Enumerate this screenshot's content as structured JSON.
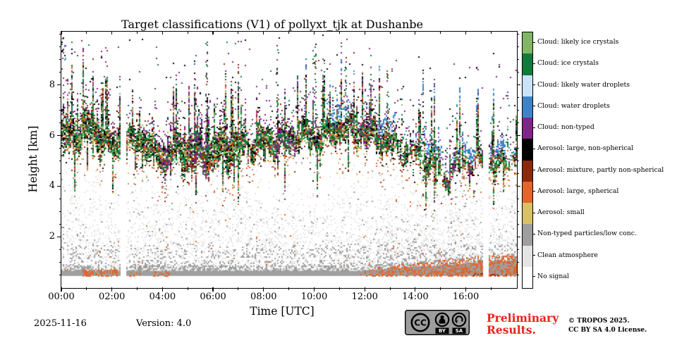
{
  "colors": {
    "preliminary_red": "#e8241c",
    "badge_gray": "#9d9d9d",
    "axis_black": "#000000"
  },
  "footer": {
    "date": "2025-11-16",
    "version": "Version: 4.0",
    "preliminary_line1": "Preliminary",
    "preliminary_line2": "Results.",
    "copyright_line1": "© TROPOS 2025.",
    "copyright_line2": "CC BY SA 4.0 License.",
    "badge": {
      "cc": "CC",
      "by": "BY",
      "sa": "SA"
    }
  },
  "chart_data": {
    "type": "heatmap",
    "title": "Target classifications (V1) of pollyxt_tjk at Dushanbe",
    "xlabel": "Time [UTC]",
    "ylabel": "Height [km]",
    "x_range_hours": [
      0,
      18.02
    ],
    "y_range_km": [
      0,
      10.11
    ],
    "x_major_tick_hours": [
      0,
      2,
      4,
      6,
      8,
      10,
      12,
      14,
      16
    ],
    "x_tick_labels": [
      "00:00",
      "02:00",
      "04:00",
      "06:00",
      "08:00",
      "10:00",
      "12:00",
      "14:00",
      "16:00"
    ],
    "x_minor_step_hours": 1,
    "y_major_ticks_km": [
      2,
      4,
      6,
      8
    ],
    "y_tick_labels": [
      "2",
      "4",
      "6",
      "8"
    ],
    "y_minor_step_km": 0.5,
    "legend_position": "right",
    "categories": [
      {
        "label": "Cloud: likely ice crystals",
        "color": "#82b566"
      },
      {
        "label": "Cloud: ice crystals",
        "color": "#117a3b"
      },
      {
        "label": "Cloud: likely water droplets",
        "color": "#c9e3f8"
      },
      {
        "label": "Cloud: water droplets",
        "color": "#3d84c6"
      },
      {
        "label": "Cloud: non-typed",
        "color": "#7f2585"
      },
      {
        "label": "Aerosol: large, non-spherical",
        "color": "#000000"
      },
      {
        "label": "Aerosol: mixture, partly non-spherical",
        "color": "#8a2a08"
      },
      {
        "label": "Aerosol: large, spherical",
        "color": "#e0662c"
      },
      {
        "label": "Aerosol: small",
        "color": "#d8c169"
      },
      {
        "label": "Non-typed particles/low conc.",
        "color": "#9e9e9e"
      },
      {
        "label": "Clean atmosphere",
        "color": "#e4e4e4"
      },
      {
        "label": "No signal",
        "color": "#ffffff"
      }
    ],
    "no_signal_gaps_hours": [
      [
        2.33,
        2.55
      ],
      [
        16.7,
        16.92
      ]
    ],
    "cloud_band": {
      "center_km": [
        [
          0,
          5.9
        ],
        [
          0.7,
          6.1
        ],
        [
          1.1,
          6.4
        ],
        [
          1.6,
          5.9
        ],
        [
          2.1,
          5.6
        ],
        [
          2.6,
          5.7
        ],
        [
          3.2,
          5.9
        ],
        [
          3.6,
          5.4
        ],
        [
          4.1,
          5.2
        ],
        [
          4.6,
          5.5
        ],
        [
          5.2,
          5.3
        ],
        [
          5.8,
          5.2
        ],
        [
          6.3,
          5.5
        ],
        [
          7.0,
          5.5
        ],
        [
          7.6,
          5.6
        ],
        [
          8.2,
          5.8
        ],
        [
          8.8,
          5.7
        ],
        [
          9.4,
          6.0
        ],
        [
          10.0,
          5.9
        ],
        [
          10.6,
          6.1
        ],
        [
          11.2,
          6.3
        ],
        [
          11.8,
          6.1
        ],
        [
          12.4,
          6.0
        ],
        [
          13.0,
          5.7
        ],
        [
          13.6,
          5.4
        ],
        [
          14.2,
          5.2
        ],
        [
          14.8,
          4.8
        ],
        [
          15.2,
          4.3
        ],
        [
          15.6,
          4.7
        ],
        [
          16.0,
          5.0
        ],
        [
          16.4,
          4.9
        ],
        [
          17.0,
          5.0
        ],
        [
          17.4,
          4.8
        ],
        [
          18.0,
          5.2
        ]
      ],
      "thickness_km": [
        [
          0,
          1.4
        ],
        [
          2,
          1.1
        ],
        [
          3.5,
          1.0
        ],
        [
          5,
          1.5
        ],
        [
          6.5,
          1.3
        ],
        [
          8,
          1.0
        ],
        [
          9.5,
          0.9
        ],
        [
          11,
          0.9
        ],
        [
          12.5,
          1.0
        ],
        [
          13.5,
          0.8
        ],
        [
          14.5,
          0.8
        ],
        [
          15.5,
          0.7
        ],
        [
          16.2,
          0.5
        ],
        [
          17,
          0.7
        ],
        [
          18,
          0.4
        ]
      ],
      "tall_spike_hours": [
        [
          5.3,
          8.8
        ],
        [
          5.75,
          9.8
        ],
        [
          8.55,
          9.6
        ],
        [
          10.05,
          9.7
        ],
        [
          11.25,
          9.2
        ],
        [
          12.9,
          8.6
        ]
      ],
      "purple_window_hours": [
        [
          3.9,
          4.6
        ],
        [
          5.0,
          5.8
        ],
        [
          8.4,
          9.3
        ],
        [
          11.8,
          12.3
        ],
        [
          15.2,
          15.6
        ],
        [
          16.0,
          16.4
        ]
      ],
      "dark_red_blob": {
        "t": [
          5.05,
          5.75
        ],
        "h": [
          4.7,
          5.35
        ]
      },
      "water_fringe_from_hour": 9.6,
      "water_cluster_hours": [
        [
          10.5,
          11.3
        ],
        [
          12.5,
          13.2
        ],
        [
          14.3,
          15.0
        ],
        [
          15.7,
          16.5
        ],
        [
          16.95,
          17.6
        ]
      ]
    },
    "surface_layer": {
      "no_data_below_km": 0.45,
      "solid_gray_top_km": 0.68,
      "speckle_top_km": [
        [
          0,
          4.6
        ],
        [
          2,
          4.3
        ],
        [
          4,
          4.05
        ],
        [
          6,
          4.1
        ],
        [
          7,
          3.8
        ],
        [
          8,
          3.4
        ],
        [
          9,
          3.3
        ],
        [
          10,
          3.45
        ],
        [
          11,
          3.7
        ],
        [
          12,
          3.95
        ],
        [
          13,
          4.15
        ],
        [
          14,
          4.4
        ],
        [
          15,
          4.5
        ],
        [
          16,
          4.6
        ],
        [
          17,
          4.65
        ],
        [
          18,
          4.75
        ]
      ],
      "orange_patches": [
        {
          "t": [
            0.85,
            2.25
          ],
          "top_km": 0.72,
          "density": 0.55
        },
        {
          "t": [
            2.6,
            3.1
          ],
          "top_km": 0.6,
          "density": 0.25
        },
        {
          "t": [
            3.6,
            4.3
          ],
          "top_km": 0.65,
          "density": 0.3
        }
      ],
      "orange_ramp": {
        "from_hour": 11.7,
        "rise_km_per_hour": 0.11,
        "max_top_km": 1.45,
        "density": 0.6
      },
      "dark_red_bottom_hours": [
        16.3,
        17.7
      ]
    }
  }
}
